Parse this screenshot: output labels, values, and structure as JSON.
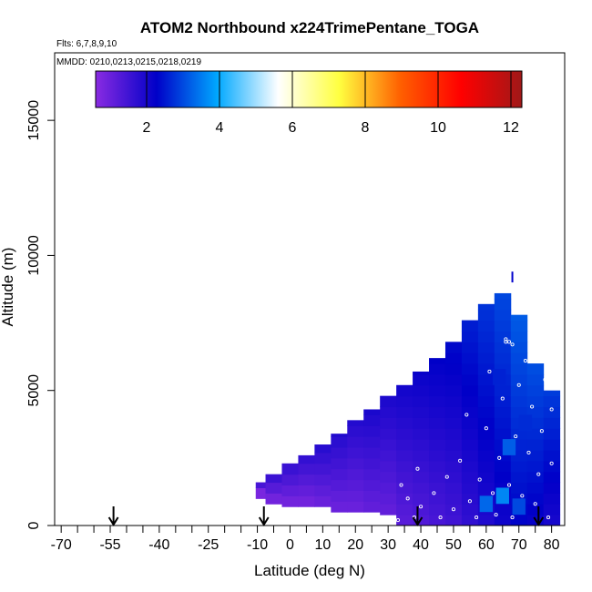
{
  "chart_data": {
    "type": "heatmap",
    "title": "ATOM2 Northbound x224TrimePentane_TOGA",
    "subtitle_flights": "Flts: 6,7,8,9,10",
    "subtitle_dates": "MMDD: 0210,0213,0215,0218,0219",
    "xlabel": "Latitude (deg N)",
    "ylabel": "Altitude (m)",
    "xlim": [
      -72,
      84
    ],
    "ylim": [
      0,
      17500
    ],
    "x_ticks": [
      "-70",
      "-55",
      "-40",
      "-25",
      "-10",
      "0",
      "10",
      "20",
      "30",
      "40",
      "50",
      "60",
      "70",
      "80"
    ],
    "y_ticks": [
      "0",
      "5000",
      "10000",
      "15000"
    ],
    "colorbar": {
      "range": [
        0.6,
        12.3
      ],
      "ticks": [
        "2",
        "4",
        "6",
        "8",
        "10",
        "12"
      ],
      "colors": [
        "#8a2be2",
        "#0000c8",
        "#00a8ff",
        "#ffffff",
        "#ffff40",
        "#ff6000",
        "#ff0000",
        "#a01818"
      ]
    },
    "arrows_lat": [
      -54,
      -8,
      39,
      76
    ],
    "columns": [
      {
        "lat": -8,
        "alt": [
          1000,
          1600
        ],
        "value": 0.8
      },
      {
        "lat": -5,
        "alt": [
          800,
          1900
        ],
        "value": 0.9
      },
      {
        "lat": 0,
        "alt": [
          700,
          2300
        ],
        "value": 0.9
      },
      {
        "lat": 5,
        "alt": [
          700,
          2600
        ],
        "value": 0.9
      },
      {
        "lat": 10,
        "alt": [
          700,
          3000
        ],
        "value": 1.0
      },
      {
        "lat": 15,
        "alt": [
          500,
          3400
        ],
        "value": 1.0
      },
      {
        "lat": 20,
        "alt": [
          500,
          3900
        ],
        "value": 1.0
      },
      {
        "lat": 25,
        "alt": [
          500,
          4300
        ],
        "value": 1.1
      },
      {
        "lat": 30,
        "alt": [
          400,
          4800
        ],
        "value": 1.1
      },
      {
        "lat": 35,
        "alt": [
          0,
          5200
        ],
        "value": 1.2
      },
      {
        "lat": 40,
        "alt": [
          0,
          5700
        ],
        "value": 1.3
      },
      {
        "lat": 45,
        "alt": [
          0,
          6200
        ],
        "value": 1.4
      },
      {
        "lat": 50,
        "alt": [
          0,
          6800
        ],
        "value": 1.5
      },
      {
        "lat": 55,
        "alt": [
          0,
          7600
        ],
        "value": 1.7
      },
      {
        "lat": 60,
        "alt": [
          0,
          8200
        ],
        "value": 1.9
      },
      {
        "lat": 65,
        "alt": [
          0,
          8600
        ],
        "value": 2.1
      },
      {
        "lat": 70,
        "alt": [
          0,
          7800
        ],
        "value": 2.3
      },
      {
        "lat": 75,
        "alt": [
          0,
          6000
        ],
        "value": 2.2
      },
      {
        "lat": 80,
        "alt": [
          0,
          5000
        ],
        "value": 2.0
      }
    ],
    "hotspots": [
      {
        "lat": 60,
        "alt": 800,
        "value": 3.3
      },
      {
        "lat": 65,
        "alt": 1100,
        "value": 3.6
      },
      {
        "lat": 70,
        "alt": 700,
        "value": 3.0
      },
      {
        "lat": 67,
        "alt": 2900,
        "value": 3.2
      },
      {
        "lat": 64,
        "alt": 5500,
        "value": 2.6
      },
      {
        "lat": 72,
        "alt": 3800,
        "value": 2.7
      }
    ],
    "samples": [
      {
        "lat": 33,
        "alt": 200
      },
      {
        "lat": 34,
        "alt": 1500
      },
      {
        "lat": 36,
        "alt": 1000
      },
      {
        "lat": 38,
        "alt": 300
      },
      {
        "lat": 39,
        "alt": 2100
      },
      {
        "lat": 40,
        "alt": 700
      },
      {
        "lat": 44,
        "alt": 1200
      },
      {
        "lat": 46,
        "alt": 300
      },
      {
        "lat": 48,
        "alt": 1800
      },
      {
        "lat": 50,
        "alt": 600
      },
      {
        "lat": 52,
        "alt": 2400
      },
      {
        "lat": 54,
        "alt": 4100
      },
      {
        "lat": 55,
        "alt": 900
      },
      {
        "lat": 57,
        "alt": 300
      },
      {
        "lat": 58,
        "alt": 1700
      },
      {
        "lat": 60,
        "alt": 3600
      },
      {
        "lat": 61,
        "alt": 5700
      },
      {
        "lat": 62,
        "alt": 1200
      },
      {
        "lat": 63,
        "alt": 400
      },
      {
        "lat": 64,
        "alt": 2500
      },
      {
        "lat": 65,
        "alt": 4700
      },
      {
        "lat": 66,
        "alt": 6900
      },
      {
        "lat": 67,
        "alt": 1500
      },
      {
        "lat": 68,
        "alt": 300
      },
      {
        "lat": 69,
        "alt": 3300
      },
      {
        "lat": 70,
        "alt": 5200
      },
      {
        "lat": 71,
        "alt": 1100
      },
      {
        "lat": 72,
        "alt": 6100
      },
      {
        "lat": 73,
        "alt": 2700
      },
      {
        "lat": 74,
        "alt": 4400
      },
      {
        "lat": 75,
        "alt": 800
      },
      {
        "lat": 76,
        "alt": 1900
      },
      {
        "lat": 77,
        "alt": 3500
      },
      {
        "lat": 78,
        "alt": 5400
      },
      {
        "lat": 79,
        "alt": 300
      },
      {
        "lat": 80,
        "alt": 2300
      },
      {
        "lat": 80,
        "alt": 4300
      },
      {
        "lat": 68,
        "alt": 6700
      },
      {
        "lat": 67,
        "alt": 6800
      },
      {
        "lat": 66,
        "alt": 6800
      }
    ],
    "flight_track": [
      {
        "lat": 68,
        "alt": 9400
      },
      {
        "lat": 68,
        "alt": 9000
      }
    ]
  }
}
